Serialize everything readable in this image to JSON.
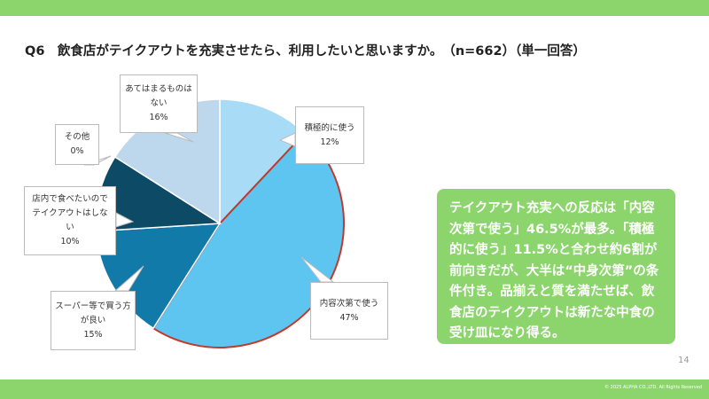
{
  "chart_data": {
    "type": "pie",
    "title": "Q6　飲食店がテイクアウトを充実させたら、利用したいと思いますか。　（n=662）（単一回答）",
    "categories": [
      "積極的に使う",
      "内容次第で使う",
      "スーパー等で買う方が良い",
      "店内で食べたいのでテイクアウトはしない",
      "その他",
      "あてはまるものはない"
    ],
    "values": [
      12,
      47,
      15,
      10,
      0,
      16
    ],
    "value_labels": [
      "12%",
      "47%",
      "15%",
      "10%",
      "0%",
      "16%"
    ],
    "colors": [
      "#a8dcf6",
      "#5ec4f0",
      "#127aa9",
      "#0d4a66",
      "#9aa7b0",
      "#bdd7ec"
    ],
    "edge_colors": [
      "#ffffff",
      "#c0392b",
      "#ffffff",
      "#ffffff",
      "#ffffff",
      "#ffffff"
    ]
  },
  "note": "テイクアウト充実への反応は「内容次第で使う」46.5%が最多。「積極的に使う」11.5%と合わせ約6割が前向きだが、大半は“中身次第”の条件付き。品揃えと質を満たせば、飲食店のテイクアウトは新たな中食の受け皿になり得る。",
  "page_number": "14",
  "copyright": "© 2025 ALPHA CO.,LTD. All Rights Reserved"
}
